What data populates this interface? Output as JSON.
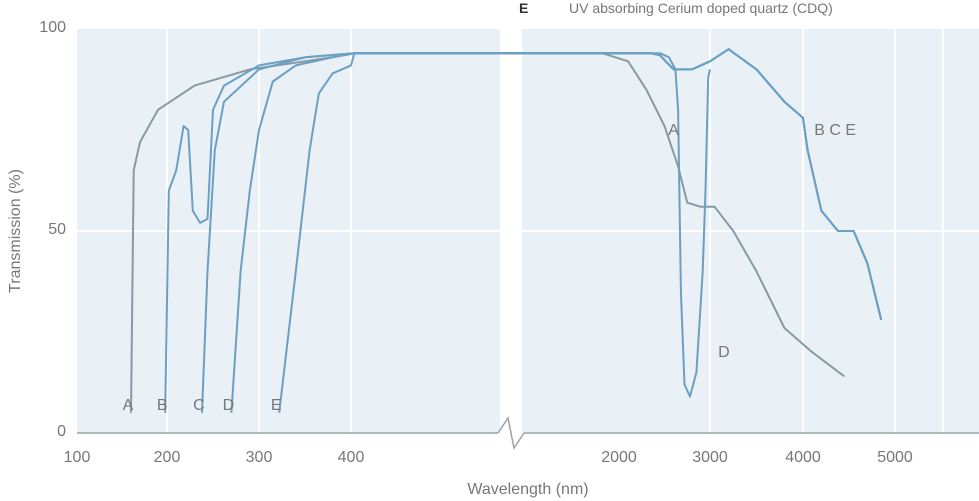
{
  "chart_data": {
    "type": "line",
    "xlabel": "Wavelength (nm)",
    "ylabel": "Transmission (%)",
    "ylim": [
      0,
      100
    ],
    "y_ticks": [
      "0",
      "50",
      "100"
    ],
    "x_axis_break": "between 400 and 2000 nm",
    "x_ticks_left": [
      "100",
      "200",
      "300",
      "400"
    ],
    "x_ticks_right": [
      "2000",
      "3000",
      "4000",
      "5000"
    ],
    "legend_visible": {
      "key": "E",
      "text": "UV absorbing Cerium doped quartz (CDQ)"
    },
    "colors": {
      "curve": "#6ba0c4",
      "curve_alt": "#889aa4",
      "background": "#e9f0f6",
      "grid": "#ffffff",
      "text": "#777777"
    },
    "curve_labels_bottom": [
      "A",
      "B",
      "C",
      "D",
      "E"
    ],
    "curve_labels_right": [
      {
        "text": "A",
        "x": 2600,
        "y": 75
      },
      {
        "text": "B C E",
        "x": 4350,
        "y": 75
      },
      {
        "text": "D",
        "x": 3150,
        "y": 20
      }
    ],
    "series": [
      {
        "name": "A",
        "points": [
          [
            160,
            5
          ],
          [
            163,
            65
          ],
          [
            170,
            72
          ],
          [
            190,
            80
          ],
          [
            230,
            86
          ],
          [
            290,
            90
          ],
          [
            380,
            93
          ],
          [
            430,
            94
          ],
          [
            1900,
            94
          ],
          [
            2100,
            92
          ],
          [
            2300,
            85
          ],
          [
            2500,
            76
          ],
          [
            2650,
            66
          ],
          [
            2750,
            57
          ],
          [
            2900,
            56
          ],
          [
            3050,
            56
          ],
          [
            3250,
            50
          ],
          [
            3500,
            40
          ],
          [
            3800,
            26
          ],
          [
            4100,
            20
          ],
          [
            4450,
            14
          ]
        ]
      },
      {
        "name": "B",
        "points": [
          [
            198,
            5
          ],
          [
            202,
            60
          ],
          [
            210,
            65
          ],
          [
            218,
            76
          ],
          [
            223,
            75
          ],
          [
            228,
            55
          ],
          [
            236,
            52
          ],
          [
            244,
            53
          ],
          [
            250,
            80
          ],
          [
            262,
            86
          ],
          [
            300,
            91
          ],
          [
            350,
            93
          ],
          [
            420,
            94
          ],
          [
            1950,
            94
          ],
          [
            2350,
            94
          ],
          [
            2450,
            93.5
          ],
          [
            2600,
            90
          ],
          [
            2800,
            90
          ],
          [
            3000,
            92
          ],
          [
            3200,
            95
          ],
          [
            3500,
            90
          ],
          [
            3800,
            82
          ],
          [
            4000,
            78
          ],
          [
            4050,
            70
          ],
          [
            4200,
            55
          ],
          [
            4380,
            50
          ],
          [
            4550,
            50
          ],
          [
            4700,
            42
          ],
          [
            4850,
            28
          ]
        ]
      },
      {
        "name": "C",
        "points": [
          [
            238,
            5
          ],
          [
            244,
            40
          ],
          [
            252,
            70
          ],
          [
            262,
            82
          ],
          [
            300,
            90
          ],
          [
            350,
            93
          ],
          [
            420,
            94
          ],
          [
            2350,
            94
          ],
          [
            2450,
            93.5
          ],
          [
            2600,
            90
          ],
          [
            2800,
            90
          ],
          [
            3000,
            92
          ],
          [
            3200,
            95
          ],
          [
            3500,
            90
          ],
          [
            3800,
            82
          ],
          [
            4000,
            78
          ],
          [
            4050,
            70
          ],
          [
            4200,
            55
          ],
          [
            4380,
            50
          ],
          [
            4550,
            50
          ],
          [
            4700,
            42
          ],
          [
            4850,
            28
          ]
        ]
      },
      {
        "name": "D",
        "points": [
          [
            270,
            5
          ],
          [
            280,
            40
          ],
          [
            290,
            60
          ],
          [
            300,
            75
          ],
          [
            315,
            87
          ],
          [
            340,
            91
          ],
          [
            380,
            93
          ],
          [
            420,
            94
          ],
          [
            2100,
            94
          ],
          [
            2450,
            94
          ],
          [
            2550,
            93
          ],
          [
            2620,
            90
          ],
          [
            2650,
            80
          ],
          [
            2680,
            35
          ],
          [
            2720,
            12
          ],
          [
            2780,
            9
          ],
          [
            2850,
            15
          ],
          [
            2920,
            40
          ],
          [
            2950,
            60
          ],
          [
            2980,
            88
          ],
          [
            3000,
            90
          ]
        ]
      },
      {
        "name": "E",
        "points": [
          [
            322,
            5
          ],
          [
            340,
            40
          ],
          [
            355,
            70
          ],
          [
            365,
            84
          ],
          [
            380,
            89
          ],
          [
            400,
            91
          ],
          [
            420,
            94
          ],
          [
            2350,
            94
          ],
          [
            2450,
            93.5
          ],
          [
            2600,
            90
          ],
          [
            2800,
            90
          ],
          [
            3000,
            92
          ],
          [
            3200,
            95
          ],
          [
            3500,
            90
          ],
          [
            3800,
            82
          ],
          [
            4000,
            78
          ],
          [
            4050,
            70
          ],
          [
            4200,
            55
          ],
          [
            4380,
            50
          ],
          [
            4550,
            50
          ],
          [
            4700,
            42
          ],
          [
            4850,
            28
          ]
        ]
      }
    ]
  }
}
